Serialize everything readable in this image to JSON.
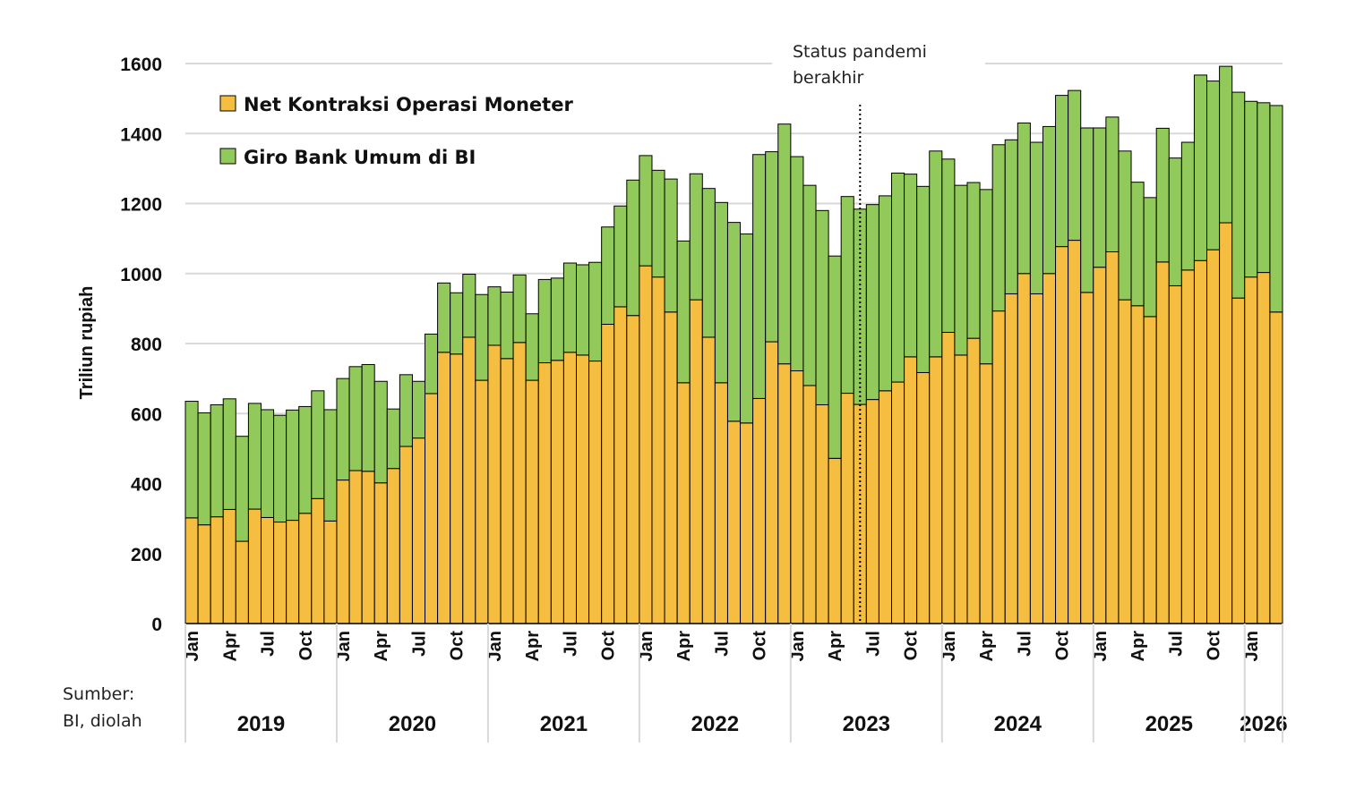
{
  "colors": {
    "net_kontraksi": "#F5BE41",
    "giro": "#92C95B",
    "grid": "#D9D9D9",
    "bar_edge": "#000000"
  },
  "chart_data": {
    "type": "bar",
    "stacked": true,
    "ylabel": "Triliun rupiah",
    "ylim": [
      0,
      1600
    ],
    "yticks": [
      0,
      200,
      400,
      600,
      800,
      1000,
      1200,
      1400,
      1600
    ],
    "grid": true,
    "legend_position": "top-left",
    "month_labels": [
      "Jan",
      "Apr",
      "Jul",
      "Oct"
    ],
    "years": [
      {
        "label": "2019",
        "months": 12
      },
      {
        "label": "2020",
        "months": 12
      },
      {
        "label": "2021",
        "months": 12
      },
      {
        "label": "2022",
        "months": 12
      },
      {
        "label": "2023",
        "months": 12
      },
      {
        "label": "2024",
        "months": 12
      },
      {
        "label": "2025",
        "months": 12
      },
      {
        "label": "2026",
        "months": 3
      }
    ],
    "series": [
      {
        "name": "Net Kontraksi Operasi Moneter",
        "color_key": "net_kontraksi",
        "values": [
          302,
          282,
          305,
          326,
          235,
          327,
          303,
          290,
          295,
          315,
          357,
          293,
          410,
          437,
          435,
          402,
          443,
          506,
          530,
          657,
          775,
          770,
          818,
          695,
          795,
          757,
          803,
          695,
          745,
          752,
          775,
          767,
          750,
          855,
          905,
          880,
          1022,
          990,
          890,
          688,
          925,
          818,
          688,
          578,
          573,
          643,
          805,
          742,
          722,
          680,
          625,
          472,
          658,
          626,
          640,
          665,
          690,
          762,
          717,
          762,
          832,
          767,
          815,
          742,
          893,
          942,
          1000,
          942,
          1000,
          1077,
          1095,
          946,
          1018,
          1062,
          925,
          908,
          877,
          1033,
          965,
          1010,
          1037,
          1068,
          1145,
          930,
          990,
          1003,
          890
        ]
      },
      {
        "name": "Giro Bank Umum di BI",
        "color_key": "giro",
        "values": [
          333,
          320,
          320,
          316,
          300,
          302,
          308,
          305,
          315,
          305,
          308,
          318,
          290,
          297,
          305,
          290,
          170,
          205,
          162,
          170,
          198,
          175,
          180,
          245,
          167,
          190,
          193,
          190,
          238,
          235,
          255,
          258,
          282,
          278,
          288,
          387,
          315,
          305,
          380,
          405,
          360,
          425,
          515,
          568,
          540,
          697,
          543,
          685,
          612,
          572,
          555,
          578,
          562,
          558,
          557,
          557,
          597,
          522,
          532,
          588,
          495,
          485,
          445,
          498,
          475,
          440,
          430,
          433,
          420,
          432,
          428,
          470,
          398,
          385,
          425,
          353,
          340,
          382,
          365,
          365,
          530,
          482,
          447,
          588,
          502,
          485,
          590
        ]
      }
    ],
    "annotations": [
      {
        "text_lines": [
          "Status pandemi",
          "berakhir"
        ],
        "at_month_index": 53.5,
        "style": "dotted-vertical-line"
      }
    ],
    "source_lines": [
      "Sumber:",
      "BI, diolah"
    ]
  }
}
